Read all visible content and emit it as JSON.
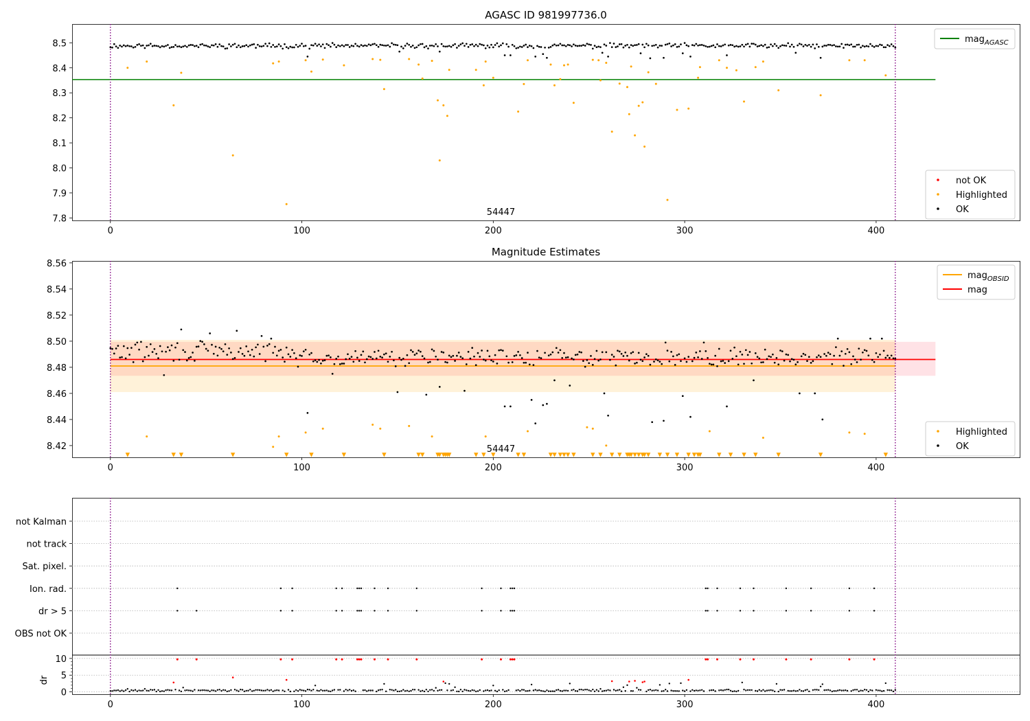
{
  "chart_data": [
    {
      "type": "scatter",
      "title": "AGASC ID 981997736.0",
      "xlim": [
        -20,
        475
      ],
      "ylim": [
        7.79,
        8.575
      ],
      "xticks": [
        0,
        100,
        200,
        300,
        400
      ],
      "yticks": [
        7.8,
        7.9,
        8.0,
        8.1,
        8.2,
        8.3,
        8.4,
        8.5
      ],
      "ytick_labels": [
        "7.8",
        "7.9",
        "8.0",
        "8.1",
        "8.2",
        "8.3",
        "8.4",
        "8.5"
      ],
      "annotation": "54447",
      "annotation_x": 204,
      "vlines": [
        0,
        410
      ],
      "hlines": [
        {
          "name": "mag_AGASC",
          "y": 8.353,
          "x": [
            -20,
            431
          ],
          "color": "#008000"
        }
      ],
      "legend_lines": [
        {
          "label": "mag",
          "sub": "AGASC",
          "color": "#008000"
        }
      ],
      "legend_points": [
        {
          "label": "not OK",
          "color": "#ff0000"
        },
        {
          "label": "Highlighted",
          "color": "#ffa500"
        },
        {
          "label": "OK",
          "color": "#000000"
        }
      ],
      "ok_base": 8.488,
      "ok_amp": 0.012,
      "ok_dips": [
        [
          103,
          8.445
        ],
        [
          151,
          8.465
        ],
        [
          172,
          8.465
        ],
        [
          206,
          8.45
        ],
        [
          209,
          8.45
        ],
        [
          222,
          8.445
        ],
        [
          226,
          8.455
        ],
        [
          228,
          8.44
        ],
        [
          257,
          8.46
        ],
        [
          260,
          8.445
        ],
        [
          277,
          8.465
        ],
        [
          282,
          8.438
        ],
        [
          289,
          8.44
        ],
        [
          299,
          8.458
        ],
        [
          303,
          8.445
        ],
        [
          322,
          8.45
        ],
        [
          358,
          8.46
        ],
        [
          371,
          8.44
        ],
        [
          277,
          8.458
        ]
      ],
      "highlighted": [
        [
          9,
          8.4
        ],
        [
          19,
          8.425
        ],
        [
          33,
          8.25
        ],
        [
          37,
          8.38
        ],
        [
          64,
          8.05
        ],
        [
          85,
          8.418
        ],
        [
          88,
          8.425
        ],
        [
          92,
          7.855
        ],
        [
          102,
          8.43
        ],
        [
          105,
          8.385
        ],
        [
          111,
          8.433
        ],
        [
          122,
          8.41
        ],
        [
          137,
          8.435
        ],
        [
          141,
          8.432
        ],
        [
          143,
          8.315
        ],
        [
          156,
          8.435
        ],
        [
          161,
          8.413
        ],
        [
          163,
          8.357
        ],
        [
          168,
          8.428
        ],
        [
          171,
          8.27
        ],
        [
          172,
          8.03
        ],
        [
          174,
          8.25
        ],
        [
          176,
          8.208
        ],
        [
          177,
          8.392
        ],
        [
          191,
          8.392
        ],
        [
          195,
          8.33
        ],
        [
          196,
          8.425
        ],
        [
          200,
          8.36
        ],
        [
          213,
          8.225
        ],
        [
          216,
          8.335
        ],
        [
          218,
          8.43
        ],
        [
          230,
          8.413
        ],
        [
          232,
          8.33
        ],
        [
          235,
          8.355
        ],
        [
          237,
          8.41
        ],
        [
          239,
          8.413
        ],
        [
          242,
          8.26
        ],
        [
          252,
          8.432
        ],
        [
          255,
          8.43
        ],
        [
          256,
          8.35
        ],
        [
          259,
          8.42
        ],
        [
          262,
          8.145
        ],
        [
          266,
          8.337
        ],
        [
          270,
          8.323
        ],
        [
          271,
          8.215
        ],
        [
          272,
          8.405
        ],
        [
          274,
          8.13
        ],
        [
          276,
          8.248
        ],
        [
          278,
          8.262
        ],
        [
          279,
          8.085
        ],
        [
          281,
          8.382
        ],
        [
          285,
          8.336
        ],
        [
          291,
          7.872
        ],
        [
          296,
          8.232
        ],
        [
          302,
          8.237
        ],
        [
          307,
          8.36
        ],
        [
          308,
          8.403
        ],
        [
          318,
          8.43
        ],
        [
          322,
          8.4
        ],
        [
          327,
          8.39
        ],
        [
          331,
          8.265
        ],
        [
          337,
          8.403
        ],
        [
          341,
          8.425
        ],
        [
          349,
          8.31
        ],
        [
          371,
          8.29
        ],
        [
          386,
          8.43
        ],
        [
          394,
          8.43
        ],
        [
          405,
          8.37
        ]
      ]
    },
    {
      "type": "scatter",
      "title": "Magnitude Estimates",
      "xlim": [
        -20,
        475
      ],
      "ylim": [
        8.411,
        8.5615
      ],
      "xticks": [
        0,
        100,
        200,
        300,
        400
      ],
      "yticks": [
        8.42,
        8.44,
        8.46,
        8.48,
        8.5,
        8.52,
        8.54,
        8.56
      ],
      "ytick_labels": [
        "8.42",
        "8.44",
        "8.46",
        "8.48",
        "8.50",
        "8.52",
        "8.54",
        "8.56"
      ],
      "annotation": "54447",
      "annotation_x": 204,
      "vlines": [
        0,
        410
      ],
      "bands": [
        {
          "name": "mag-band",
          "y": [
            8.4735,
            8.4995
          ],
          "x": [
            0,
            431
          ],
          "color": "#ffb6c1",
          "opacity": 0.4
        },
        {
          "name": "mag-obsid-band",
          "y": [
            8.461,
            8.501
          ],
          "x": [
            0,
            410
          ],
          "color": "#ffa500",
          "opacity": 0.15
        }
      ],
      "hlines": [
        {
          "name": "mag-line",
          "y": 8.486,
          "x": [
            0,
            431
          ],
          "color": "#ff0000"
        },
        {
          "name": "mag-obsid-line",
          "y": 8.481,
          "x": [
            0,
            410
          ],
          "color": "#ffa500"
        }
      ],
      "legend_lines": [
        {
          "label": "mag",
          "sub": "OBSID",
          "color": "#ffa500"
        },
        {
          "label": "mag",
          "sub": "",
          "color": "#ff0000"
        }
      ],
      "legend_points": [
        {
          "label": "Highlighted",
          "color": "#ffa500"
        },
        {
          "label": "OK",
          "color": "#000000"
        }
      ],
      "ok_base": 8.488,
      "ok_amp": 0.008,
      "ok_dips": [
        [
          28,
          8.474
        ],
        [
          103,
          8.445
        ],
        [
          116,
          8.475
        ],
        [
          150,
          8.461
        ],
        [
          165,
          8.459
        ],
        [
          172,
          8.465
        ],
        [
          185,
          8.462
        ],
        [
          206,
          8.45
        ],
        [
          209,
          8.45
        ],
        [
          220,
          8.455
        ],
        [
          222,
          8.437
        ],
        [
          226,
          8.451
        ],
        [
          228,
          8.452
        ],
        [
          232,
          8.47
        ],
        [
          240,
          8.466
        ],
        [
          260,
          8.443
        ],
        [
          258,
          8.46
        ],
        [
          283,
          8.438
        ],
        [
          289,
          8.439
        ],
        [
          299,
          8.458
        ],
        [
          303,
          8.442
        ],
        [
          322,
          8.45
        ],
        [
          336,
          8.47
        ],
        [
          360,
          8.46
        ],
        [
          372,
          8.44
        ],
        [
          368,
          8.46
        ]
      ],
      "ok_peaks": [
        [
          37,
          8.509
        ],
        [
          52,
          8.506
        ],
        [
          66,
          8.508
        ],
        [
          79,
          8.504
        ],
        [
          84,
          8.502
        ],
        [
          290,
          8.499
        ],
        [
          310,
          8.499
        ],
        [
          380,
          8.502
        ],
        [
          397,
          8.502
        ],
        [
          403,
          8.502
        ]
      ],
      "highlighted": [
        [
          19,
          8.427
        ],
        [
          85,
          8.419
        ],
        [
          88,
          8.427
        ],
        [
          102,
          8.43
        ],
        [
          111,
          8.433
        ],
        [
          137,
          8.436
        ],
        [
          141,
          8.433
        ],
        [
          156,
          8.435
        ],
        [
          168,
          8.427
        ],
        [
          196,
          8.427
        ],
        [
          218,
          8.431
        ],
        [
          249,
          8.434
        ],
        [
          252,
          8.433
        ],
        [
          259,
          8.42
        ],
        [
          313,
          8.431
        ],
        [
          341,
          8.426
        ],
        [
          386,
          8.43
        ],
        [
          394,
          8.429
        ]
      ],
      "clipped": [
        9,
        33,
        37,
        64,
        92,
        105,
        122,
        143,
        161,
        163,
        171,
        172,
        174,
        175,
        176,
        177,
        191,
        195,
        200,
        213,
        216,
        230,
        232,
        235,
        237,
        239,
        242,
        252,
        256,
        262,
        266,
        270,
        271,
        272,
        274,
        276,
        278,
        279,
        281,
        287,
        291,
        296,
        302,
        305,
        307,
        308,
        318,
        324,
        331,
        337,
        349,
        371,
        405
      ]
    },
    {
      "type": "scatter",
      "categories": [
        "not Kalman",
        "not track",
        "Sat. pixel.",
        "Ion. rad.",
        "dr > 5",
        "OBS not OK"
      ],
      "flag_x": {
        "Ion. rad.": [
          35,
          89,
          95,
          118,
          121,
          129,
          130,
          131,
          138,
          145,
          160,
          194,
          204,
          209,
          210,
          211,
          311,
          312,
          317,
          329,
          336,
          353,
          366,
          386,
          399
        ],
        "dr > 5": [
          35,
          45,
          89,
          95,
          118,
          121,
          129,
          130,
          131,
          138,
          145,
          160,
          194,
          204,
          209,
          210,
          211,
          311,
          312,
          317,
          329,
          336,
          353,
          366,
          386,
          399
        ]
      },
      "xlim": [
        -20,
        475
      ],
      "xticks": [
        0,
        100,
        200,
        300,
        400
      ],
      "vlines": [
        0,
        410
      ],
      "dr_ylim": [
        -0.7,
        11.0
      ],
      "dr_yticks": [
        0,
        5,
        10
      ],
      "dr_ytick_labels": [
        "0",
        "5",
        "10"
      ],
      "dr_ylabel": "dr",
      "dr_clip": 9.7,
      "dr_high": [
        [
          33,
          2.8
        ],
        [
          64,
          4.3
        ],
        [
          92,
          3.6
        ],
        [
          174,
          3.1
        ],
        [
          262,
          3.2
        ],
        [
          271,
          3.1
        ],
        [
          274,
          3.3
        ],
        [
          278,
          2.9
        ],
        [
          279,
          3.1
        ],
        [
          302,
          3.6
        ]
      ],
      "dr_scatter_ok": [
        [
          9,
          0.9
        ],
        [
          18,
          0.9
        ],
        [
          38,
          1.3
        ],
        [
          51,
          0.4
        ],
        [
          107,
          1.9
        ],
        [
          143,
          2.4
        ],
        [
          170,
          1.2
        ],
        [
          175,
          2.6
        ],
        [
          177,
          2.4
        ],
        [
          180,
          1.4
        ],
        [
          200,
          1.9
        ],
        [
          220,
          2.2
        ],
        [
          240,
          2.5
        ],
        [
          256,
          0.9
        ],
        [
          268,
          1.4
        ],
        [
          270,
          2.0
        ],
        [
          275,
          1.2
        ],
        [
          287,
          2.1
        ],
        [
          292,
          2.5
        ],
        [
          298,
          2.6
        ],
        [
          330,
          2.8
        ],
        [
          348,
          2.4
        ],
        [
          371,
          1.6
        ],
        [
          372,
          2.3
        ],
        [
          405,
          2.6
        ]
      ]
    }
  ]
}
